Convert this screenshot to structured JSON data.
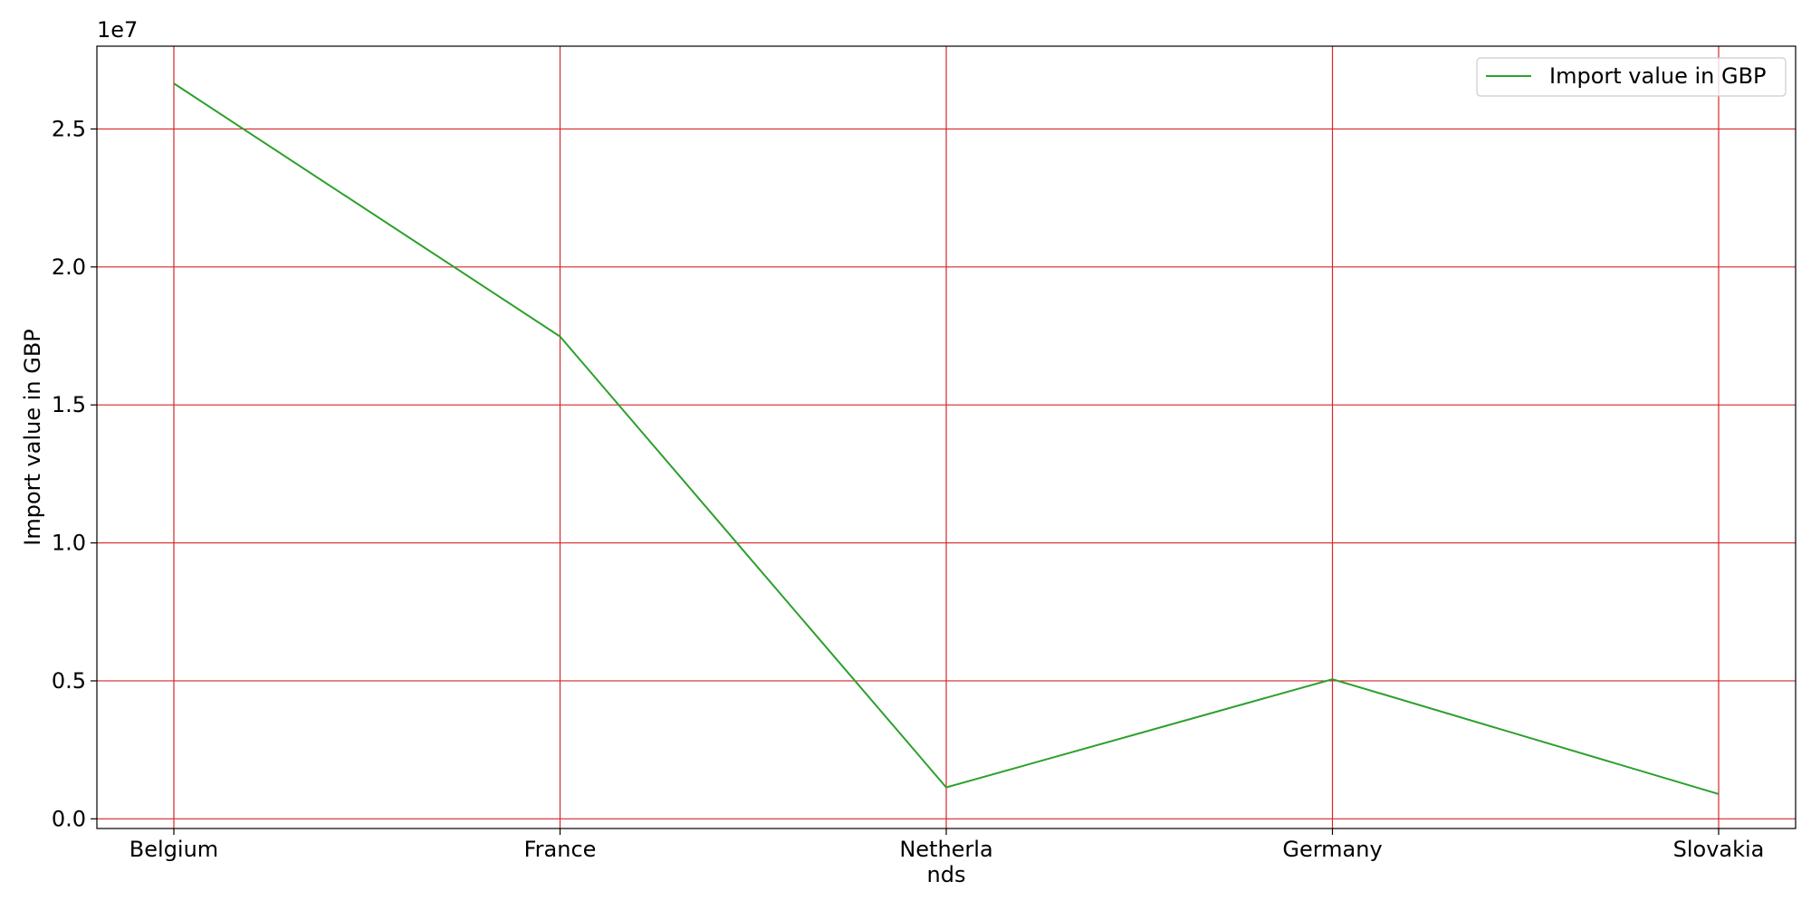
{
  "chart_data": {
    "type": "line",
    "title": "",
    "xlabel": "",
    "ylabel": "Import value in GBP",
    "y_offset_label": "1e7",
    "categories": [
      "Belgium",
      "France",
      "Netherlands",
      "Germany",
      "Slovakia"
    ],
    "category_tick_lines": [
      [
        "Belgium"
      ],
      [
        "France"
      ],
      [
        "Netherla",
        "nds"
      ],
      [
        "Germany"
      ],
      [
        "Slovakia"
      ]
    ],
    "series": [
      {
        "name": "Import value in GBP",
        "color": "#2ca02c",
        "values": [
          26650000,
          17480000,
          1140000,
          5060000,
          900000
        ]
      }
    ],
    "ylim": [
      -350000,
      28000000
    ],
    "yticks": [
      0,
      5000000,
      10000000,
      15000000,
      20000000,
      25000000
    ],
    "ytick_labels": [
      "0.0",
      "0.5",
      "1.0",
      "1.5",
      "2.0",
      "2.5"
    ],
    "grid": true,
    "grid_color": "#d62728",
    "legend_position": "top-right"
  }
}
